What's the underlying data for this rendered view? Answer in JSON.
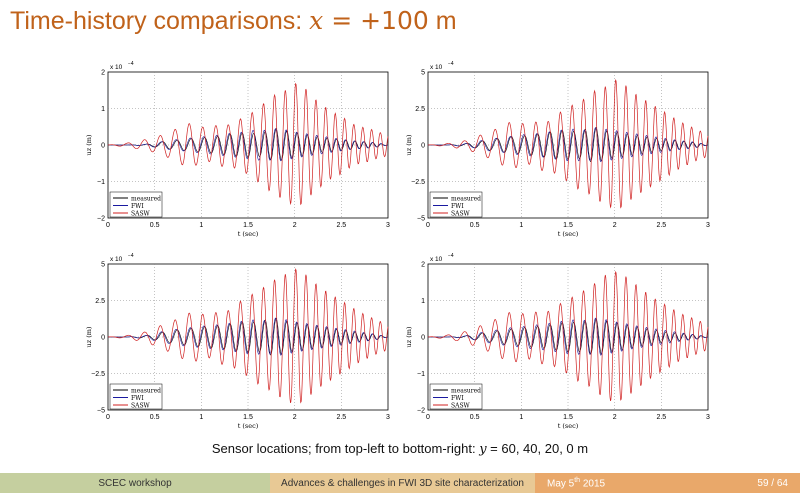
{
  "slide": {
    "title_text": "Time-history comparisons: ",
    "title_math_var": "x",
    "title_math_eq": " = +",
    "title_num": "100",
    "title_unit": " m",
    "caption_text": "Sensor locations; from top-left to bottom-right: ",
    "caption_var": "y",
    "caption_eq": " = 60, 40, 20, 0",
    "caption_unit": " m"
  },
  "footer": {
    "left": "SCEC workshop",
    "center": "Advances & challenges in FWI 3D site characterization",
    "date_prefix": "May 5",
    "date_sup": "th",
    "date_year": " 2015",
    "page": "59 / 64"
  },
  "colors": {
    "measured": "#000000",
    "FWI": "#1a1aa0",
    "SASW": "#d02020",
    "title": "#c0621a"
  },
  "chart_data": [
    {
      "type": "line",
      "xlabel": "t (sec)",
      "ylabel": "uz (m)",
      "scale_label": "x 10",
      "scale_exp": "−4",
      "xlim": [
        0,
        3
      ],
      "ylim": [
        -2,
        2
      ],
      "xticks": [
        "0",
        "0.5",
        "1",
        "1.5",
        "2",
        "2.5",
        "3"
      ],
      "yticks": [
        "−2",
        "−1",
        "0",
        "1",
        "2"
      ],
      "grid": true,
      "legend_position": "bottom-left",
      "series": [
        {
          "name": "measured",
          "t": [
            0,
            0.2,
            0.4,
            0.5,
            0.6,
            0.7,
            0.8,
            0.9,
            1.0,
            1.1,
            1.2,
            1.3,
            1.4,
            1.5,
            1.6,
            1.7,
            1.8,
            1.9,
            2.0,
            2.1,
            2.2,
            2.3,
            2.4,
            2.5,
            2.6,
            2.7,
            2.8,
            2.9,
            3.0
          ],
          "values": [
            0,
            0,
            0.02,
            -0.05,
            0.1,
            -0.12,
            0.15,
            -0.18,
            0.2,
            -0.22,
            0.25,
            -0.3,
            0.32,
            -0.35,
            0.3,
            -0.38,
            0.45,
            -0.4,
            0.35,
            -0.3,
            0.25,
            -0.2,
            0.18,
            -0.15,
            0.12,
            -0.1,
            0.08,
            -0.05,
            0
          ]
        },
        {
          "name": "FWI",
          "t": [
            0,
            0.2,
            0.4,
            0.5,
            0.6,
            0.7,
            0.8,
            0.9,
            1.0,
            1.1,
            1.2,
            1.3,
            1.4,
            1.5,
            1.6,
            1.7,
            1.8,
            1.9,
            2.0,
            2.1,
            2.2,
            2.3,
            2.4,
            2.5,
            2.6,
            2.7,
            2.8,
            2.9,
            3.0
          ],
          "values": [
            0,
            0,
            -0.02,
            0.06,
            -0.1,
            0.14,
            -0.16,
            0.2,
            -0.22,
            0.25,
            -0.28,
            0.32,
            -0.34,
            0.38,
            -0.42,
            0.4,
            -0.45,
            0.42,
            -0.36,
            0.32,
            -0.28,
            0.24,
            -0.2,
            0.16,
            -0.12,
            0.1,
            -0.08,
            0.05,
            0
          ]
        },
        {
          "name": "SASW",
          "t": [
            0,
            0.2,
            0.4,
            0.5,
            0.6,
            0.7,
            0.8,
            0.9,
            1.0,
            1.1,
            1.2,
            1.3,
            1.4,
            1.5,
            1.6,
            1.7,
            1.8,
            1.9,
            2.0,
            2.1,
            2.2,
            2.3,
            2.4,
            2.5,
            2.6,
            2.7,
            2.8,
            2.9,
            3.0
          ],
          "values": [
            0,
            0.05,
            -0.15,
            0.2,
            -0.3,
            0.4,
            -0.55,
            0.6,
            -0.5,
            0.45,
            -0.6,
            0.55,
            -0.7,
            0.8,
            -1.0,
            1.2,
            -1.4,
            1.5,
            -1.7,
            1.6,
            -1.3,
            1.1,
            -0.9,
            0.8,
            -0.6,
            0.5,
            -0.45,
            0.35,
            -0.3
          ]
        }
      ]
    },
    {
      "type": "line",
      "xlabel": "t (sec)",
      "ylabel": "uz (m)",
      "scale_label": "x 10",
      "scale_exp": "−4",
      "xlim": [
        0,
        3
      ],
      "ylim": [
        -5,
        5
      ],
      "xticks": [
        "0",
        "0.5",
        "1",
        "1.5",
        "2",
        "2.5",
        "3"
      ],
      "yticks": [
        "−5",
        "−2.5",
        "0",
        "2.5",
        "5"
      ],
      "grid": true,
      "legend_position": "bottom-left",
      "series": [
        {
          "name": "measured",
          "t": [
            0,
            0.2,
            0.4,
            0.5,
            0.6,
            0.7,
            0.8,
            0.9,
            1.0,
            1.1,
            1.2,
            1.3,
            1.4,
            1.5,
            1.6,
            1.7,
            1.8,
            1.9,
            2.0,
            2.1,
            2.2,
            2.3,
            2.4,
            2.5,
            2.6,
            2.7,
            2.8,
            2.9,
            3.0
          ],
          "values": [
            0,
            0,
            0.1,
            -0.2,
            0.3,
            -0.4,
            0.5,
            -0.6,
            0.6,
            -0.7,
            0.8,
            -0.9,
            1.0,
            -1.0,
            0.9,
            -1.1,
            1.2,
            -1.0,
            0.9,
            -0.8,
            0.7,
            -0.6,
            0.5,
            -0.4,
            0.35,
            -0.3,
            0.2,
            -0.15,
            0
          ]
        },
        {
          "name": "FWI",
          "t": [
            0,
            0.2,
            0.4,
            0.5,
            0.6,
            0.7,
            0.8,
            0.9,
            1.0,
            1.1,
            1.2,
            1.3,
            1.4,
            1.5,
            1.6,
            1.7,
            1.8,
            1.9,
            2.0,
            2.1,
            2.2,
            2.3,
            2.4,
            2.5,
            2.6,
            2.7,
            2.8,
            2.9,
            3.0
          ],
          "values": [
            0,
            0,
            -0.1,
            0.2,
            -0.35,
            0.45,
            -0.5,
            0.6,
            -0.7,
            0.75,
            -0.8,
            0.9,
            -1.0,
            1.1,
            -1.1,
            1.0,
            -1.2,
            1.1,
            -1.0,
            0.9,
            -0.8,
            0.7,
            -0.6,
            0.5,
            -0.4,
            0.3,
            -0.25,
            0.15,
            0
          ]
        },
        {
          "name": "SASW",
          "t": [
            0,
            0.2,
            0.4,
            0.5,
            0.6,
            0.7,
            0.8,
            0.9,
            1.0,
            1.1,
            1.2,
            1.3,
            1.4,
            1.5,
            1.6,
            1.7,
            1.8,
            1.9,
            2.0,
            2.1,
            2.2,
            2.3,
            2.4,
            2.5,
            2.6,
            2.7,
            2.8,
            2.9,
            3.0
          ],
          "values": [
            0,
            0.1,
            -0.3,
            0.5,
            -0.8,
            1.0,
            -1.4,
            1.6,
            -1.5,
            1.3,
            -1.8,
            1.6,
            -2.2,
            2.5,
            -3.0,
            3.2,
            -3.8,
            4.0,
            -4.5,
            4.2,
            -3.6,
            3.2,
            -2.8,
            2.4,
            -2.0,
            1.6,
            -1.3,
            1.0,
            -0.8
          ]
        }
      ]
    },
    {
      "type": "line",
      "xlabel": "t (sec)",
      "ylabel": "uz (m)",
      "scale_label": "x 10",
      "scale_exp": "−4",
      "xlim": [
        0,
        3
      ],
      "ylim": [
        -5,
        5
      ],
      "xticks": [
        "0",
        "0.5",
        "1",
        "1.5",
        "2",
        "2.5",
        "3"
      ],
      "yticks": [
        "−5",
        "−2.5",
        "0",
        "2.5",
        "5"
      ],
      "grid": true,
      "legend_position": "bottom-left",
      "series": [
        {
          "name": "measured",
          "t": [
            0,
            0.2,
            0.4,
            0.5,
            0.6,
            0.7,
            0.8,
            0.9,
            1.0,
            1.1,
            1.2,
            1.3,
            1.4,
            1.5,
            1.6,
            1.7,
            1.8,
            1.9,
            2.0,
            2.1,
            2.2,
            2.3,
            2.4,
            2.5,
            2.6,
            2.7,
            2.8,
            2.9,
            3.0
          ],
          "values": [
            0,
            0,
            0.1,
            -0.2,
            0.35,
            -0.45,
            0.55,
            -0.6,
            0.7,
            -0.75,
            0.8,
            -0.9,
            1.0,
            -1.1,
            1.0,
            -1.2,
            1.3,
            -1.1,
            1.0,
            -0.9,
            0.8,
            -0.7,
            0.6,
            -0.5,
            0.4,
            -0.3,
            0.25,
            -0.15,
            0
          ]
        },
        {
          "name": "FWI",
          "t": [
            0,
            0.2,
            0.4,
            0.5,
            0.6,
            0.7,
            0.8,
            0.9,
            1.0,
            1.1,
            1.2,
            1.3,
            1.4,
            1.5,
            1.6,
            1.7,
            1.8,
            1.9,
            2.0,
            2.1,
            2.2,
            2.3,
            2.4,
            2.5,
            2.6,
            2.7,
            2.8,
            2.9,
            3.0
          ],
          "values": [
            0,
            0,
            -0.1,
            0.25,
            -0.4,
            0.5,
            -0.6,
            0.65,
            -0.75,
            0.8,
            -0.85,
            0.95,
            -1.05,
            1.15,
            -1.2,
            1.1,
            -1.3,
            1.2,
            -1.05,
            0.95,
            -0.85,
            0.75,
            -0.65,
            0.55,
            -0.45,
            0.35,
            -0.25,
            0.15,
            0
          ]
        },
        {
          "name": "SASW",
          "t": [
            0,
            0.2,
            0.4,
            0.5,
            0.6,
            0.7,
            0.8,
            0.9,
            1.0,
            1.1,
            1.2,
            1.3,
            1.4,
            1.5,
            1.6,
            1.7,
            1.8,
            1.9,
            2.0,
            2.1,
            2.2,
            2.3,
            2.4,
            2.5,
            2.6,
            2.7,
            2.8,
            2.9,
            3.0
          ],
          "values": [
            0,
            0.1,
            -0.35,
            0.6,
            -0.9,
            1.1,
            -1.5,
            1.7,
            -1.6,
            1.4,
            -1.9,
            1.8,
            -2.4,
            2.7,
            -3.2,
            3.5,
            -4.0,
            4.3,
            -4.7,
            4.4,
            -3.8,
            3.3,
            -2.9,
            2.5,
            -2.1,
            1.7,
            -1.4,
            1.1,
            -0.9
          ]
        }
      ]
    },
    {
      "type": "line",
      "xlabel": "t (sec)",
      "ylabel": "uz (m)",
      "scale_label": "x 10",
      "scale_exp": "−4",
      "xlim": [
        0,
        3
      ],
      "ylim": [
        -2,
        2
      ],
      "xticks": [
        "0",
        "0.5",
        "1",
        "1.5",
        "2",
        "2.5",
        "3"
      ],
      "yticks": [
        "−2",
        "−1",
        "0",
        "1",
        "2"
      ],
      "grid": true,
      "legend_position": "bottom-left",
      "series": [
        {
          "name": "measured",
          "t": [
            0,
            0.2,
            0.4,
            0.5,
            0.6,
            0.7,
            0.8,
            0.9,
            1.0,
            1.1,
            1.2,
            1.3,
            1.4,
            1.5,
            1.6,
            1.7,
            1.8,
            1.9,
            2.0,
            2.1,
            2.2,
            2.3,
            2.4,
            2.5,
            2.6,
            2.7,
            2.8,
            2.9,
            3.0
          ],
          "values": [
            0,
            0,
            0.03,
            -0.08,
            0.12,
            -0.15,
            0.2,
            -0.22,
            0.25,
            -0.28,
            0.3,
            -0.34,
            0.38,
            -0.42,
            0.4,
            -0.45,
            0.5,
            -0.45,
            0.4,
            -0.35,
            0.3,
            -0.25,
            0.2,
            -0.16,
            0.12,
            -0.1,
            0.08,
            -0.05,
            0
          ]
        },
        {
          "name": "FWI",
          "t": [
            0,
            0.2,
            0.4,
            0.5,
            0.6,
            0.7,
            0.8,
            0.9,
            1.0,
            1.1,
            1.2,
            1.3,
            1.4,
            1.5,
            1.6,
            1.7,
            1.8,
            1.9,
            2.0,
            2.1,
            2.2,
            2.3,
            2.4,
            2.5,
            2.6,
            2.7,
            2.8,
            2.9,
            3.0
          ],
          "values": [
            0,
            0,
            -0.03,
            0.08,
            -0.14,
            0.18,
            -0.22,
            0.26,
            -0.28,
            0.32,
            -0.34,
            0.38,
            -0.42,
            0.46,
            -0.48,
            0.45,
            -0.52,
            0.48,
            -0.42,
            0.38,
            -0.32,
            0.28,
            -0.24,
            0.2,
            -0.16,
            0.12,
            -0.08,
            0.05,
            0
          ]
        },
        {
          "name": "SASW",
          "t": [
            0,
            0.2,
            0.4,
            0.5,
            0.6,
            0.7,
            0.8,
            0.9,
            1.0,
            1.1,
            1.2,
            1.3,
            1.4,
            1.5,
            1.6,
            1.7,
            1.8,
            1.9,
            2.0,
            2.1,
            2.2,
            2.3,
            2.4,
            2.5,
            2.6,
            2.7,
            2.8,
            2.9,
            3.0
          ],
          "values": [
            0,
            0.05,
            -0.15,
            0.25,
            -0.35,
            0.45,
            -0.6,
            0.7,
            -0.65,
            0.6,
            -0.75,
            0.7,
            -0.9,
            1.0,
            -1.2,
            1.3,
            -1.5,
            1.7,
            -1.8,
            1.7,
            -1.5,
            1.3,
            -1.1,
            0.95,
            -0.8,
            0.65,
            -0.55,
            0.45,
            -0.35
          ]
        }
      ]
    }
  ]
}
